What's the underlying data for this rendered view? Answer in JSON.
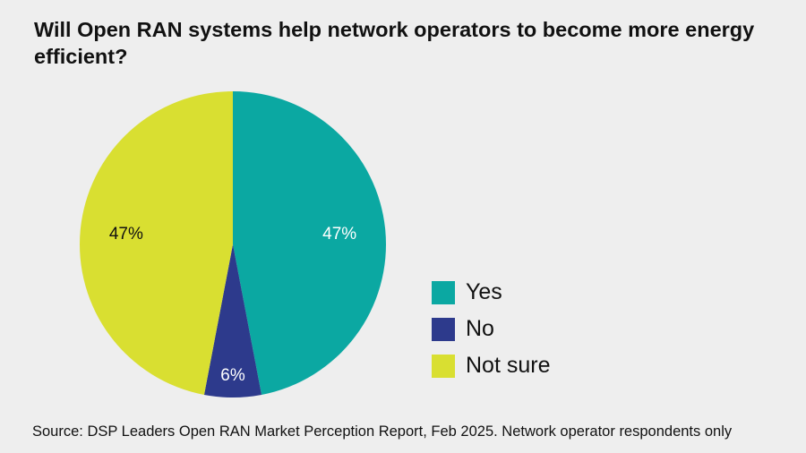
{
  "title": "Will Open RAN systems help network operators to become more energy efficient?",
  "source": "Source: DSP Leaders Open RAN Market Perception Report, Feb 2025. Network operator respondents only",
  "chart_data": {
    "type": "pie",
    "categories": [
      "Yes",
      "No",
      "Not sure"
    ],
    "values": [
      47,
      6,
      47
    ],
    "labels": [
      "47%",
      "6%",
      "47%"
    ],
    "colors": [
      "#0ba8a2",
      "#2d3a8c",
      "#d9df31"
    ],
    "label_colors": [
      "#ffffff",
      "#ffffff",
      "#111111"
    ],
    "legend_position": "right"
  }
}
